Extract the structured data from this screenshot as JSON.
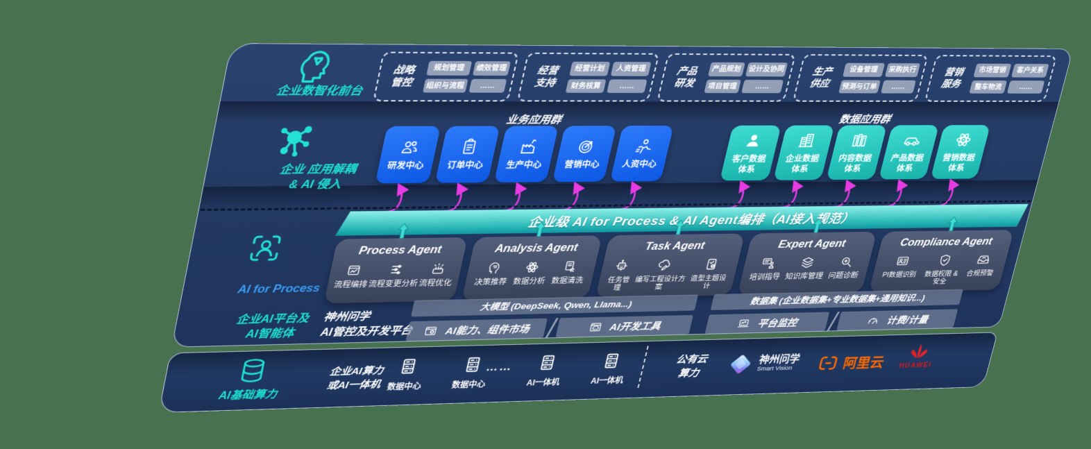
{
  "colors": {
    "page_bg": "#48714F",
    "plate_navy": "#233a63",
    "bottom_navy": "#1b3057",
    "accent_cyan": "#1fe0d2",
    "accent_blue": "#3b9cf5",
    "blue_card": "#1668f0",
    "teal_card": "#27cfc4",
    "band_top": "#8df0e8",
    "band_bottom": "#0f98a0",
    "magenta_arrow": "#e73be4",
    "chip_gray": "#a3adc2",
    "agent_card": "#49546e",
    "bar_gray": "#848fa6",
    "alibaba_orange": "#ff6a00",
    "huawei_red": "#d71920"
  },
  "front_layer": {
    "label": "企业数智化前台",
    "icon": "brain-head",
    "groups": [
      {
        "lines": [
          "战略",
          "管控"
        ],
        "chips": [
          "规划管理",
          "绩效管理",
          "组织与流程",
          "……"
        ]
      },
      {
        "lines": [
          "经营",
          "支持"
        ],
        "chips": [
          "经营计划",
          "人资管理",
          "财务核算",
          "……"
        ]
      },
      {
        "lines": [
          "产品",
          "研发"
        ],
        "chips": [
          "产品规划",
          "设计及协同",
          "项目管理",
          "……"
        ]
      },
      {
        "lines": [
          "生产",
          "供应"
        ],
        "chips": [
          "设备管理",
          "采购执行",
          "预测与订单",
          "……"
        ]
      },
      {
        "lines": [
          "营销",
          "服务"
        ],
        "chips": [
          "市场营销",
          "客户关系",
          "整车物流",
          "……"
        ]
      }
    ]
  },
  "app_layer": {
    "label": "企业 应用解耦\n& AI 侵入",
    "icon": "molecule",
    "business_title": "业务应用群",
    "data_title": "数据应用群",
    "business_apps": [
      {
        "label": "研发中心",
        "icon": "people"
      },
      {
        "label": "订单中心",
        "icon": "clipboard"
      },
      {
        "label": "生产中心",
        "icon": "factory"
      },
      {
        "label": "营销中心",
        "icon": "target"
      },
      {
        "label": "人资中心",
        "icon": "hr-person"
      }
    ],
    "data_apps": [
      {
        "label": "客户数据\n体系",
        "icon": "user"
      },
      {
        "label": "企业数据\n体系",
        "icon": "building"
      },
      {
        "label": "内容数据\n体系",
        "icon": "library"
      },
      {
        "label": "产品数据\n体系",
        "icon": "car"
      },
      {
        "label": "营销数据\n体系",
        "icon": "atom"
      }
    ]
  },
  "band": {
    "text": "企业级 AI for Process & AI Agent编排（AI接入规范）"
  },
  "agent_layer": {
    "label_en": "AI for Process",
    "label_cn": "企业AI平台及\nAI智能体",
    "icon": "person-focus",
    "agents": [
      {
        "title": "Process Agent",
        "items": [
          {
            "label": "流程编排",
            "icon": "flow-edit"
          },
          {
            "label": "流程变更分析",
            "icon": "sliders"
          },
          {
            "label": "流程优化",
            "icon": "optimize"
          }
        ]
      },
      {
        "title": "Analysis Agent",
        "items": [
          {
            "label": "决策推荐",
            "icon": "decision-head"
          },
          {
            "label": "数据分析",
            "icon": "atom"
          },
          {
            "label": "数据清洗",
            "icon": "doc-clean"
          }
        ]
      },
      {
        "title": "Task Agent",
        "items": [
          {
            "label": "任务管理",
            "icon": "robot"
          },
          {
            "label": "编写工程设计方案",
            "icon": "cloud-pen"
          },
          {
            "label": "造型主题设计",
            "icon": "tablet-check"
          }
        ]
      },
      {
        "title": "Expert Agent",
        "items": [
          {
            "label": "培训指导",
            "icon": "training-board"
          },
          {
            "label": "知识库管理",
            "icon": "layers"
          },
          {
            "label": "问题诊断",
            "icon": "diagnose"
          }
        ]
      },
      {
        "title": "Compliance Agent",
        "items": [
          {
            "label": "PI数据识别",
            "icon": "id-card"
          },
          {
            "label": "数据权限 &\n安全",
            "icon": "shield-check"
          },
          {
            "label": "合规预警",
            "icon": "inbox-tray"
          }
        ]
      }
    ]
  },
  "platform": {
    "label": "神州问学\nAI管控及开发平台",
    "model_bar": "大模型 (DeepSeek, Qwen, Llama...)",
    "dataset_bar": "数据集 (企业数据集+专业数据集+通用知识...)",
    "left_tools": [
      {
        "label": "AI能力、组件市场",
        "icon": "window-gear"
      },
      {
        "label": "AI开发工具",
        "icon": "window-cloud"
      }
    ],
    "right_tools": [
      {
        "label": "平台监控",
        "icon": "laptop-chart"
      },
      {
        "label": "计费/计量",
        "icon": "gauge"
      }
    ]
  },
  "infra": {
    "label": "AI基础算力",
    "icon": "database",
    "compute": "企业AI算力\n或AI一体机",
    "nodes": [
      {
        "label": "数据中心",
        "icon": "server"
      },
      {
        "label": "数据中心",
        "icon": "server"
      },
      {
        "label": "……",
        "icon": "dots"
      },
      {
        "label": "AI一体机",
        "icon": "server"
      },
      {
        "label": "AI一体机",
        "icon": "server"
      }
    ],
    "public_cloud": "公有云\n算力",
    "vendors": [
      {
        "name": "神州问学",
        "sub": "Smart Vision",
        "icon": "sv-diamond"
      },
      {
        "name": "阿里云",
        "icon": "aliyun-brackets"
      },
      {
        "name": "HUAWEI",
        "icon": "huawei-flower"
      }
    ]
  }
}
